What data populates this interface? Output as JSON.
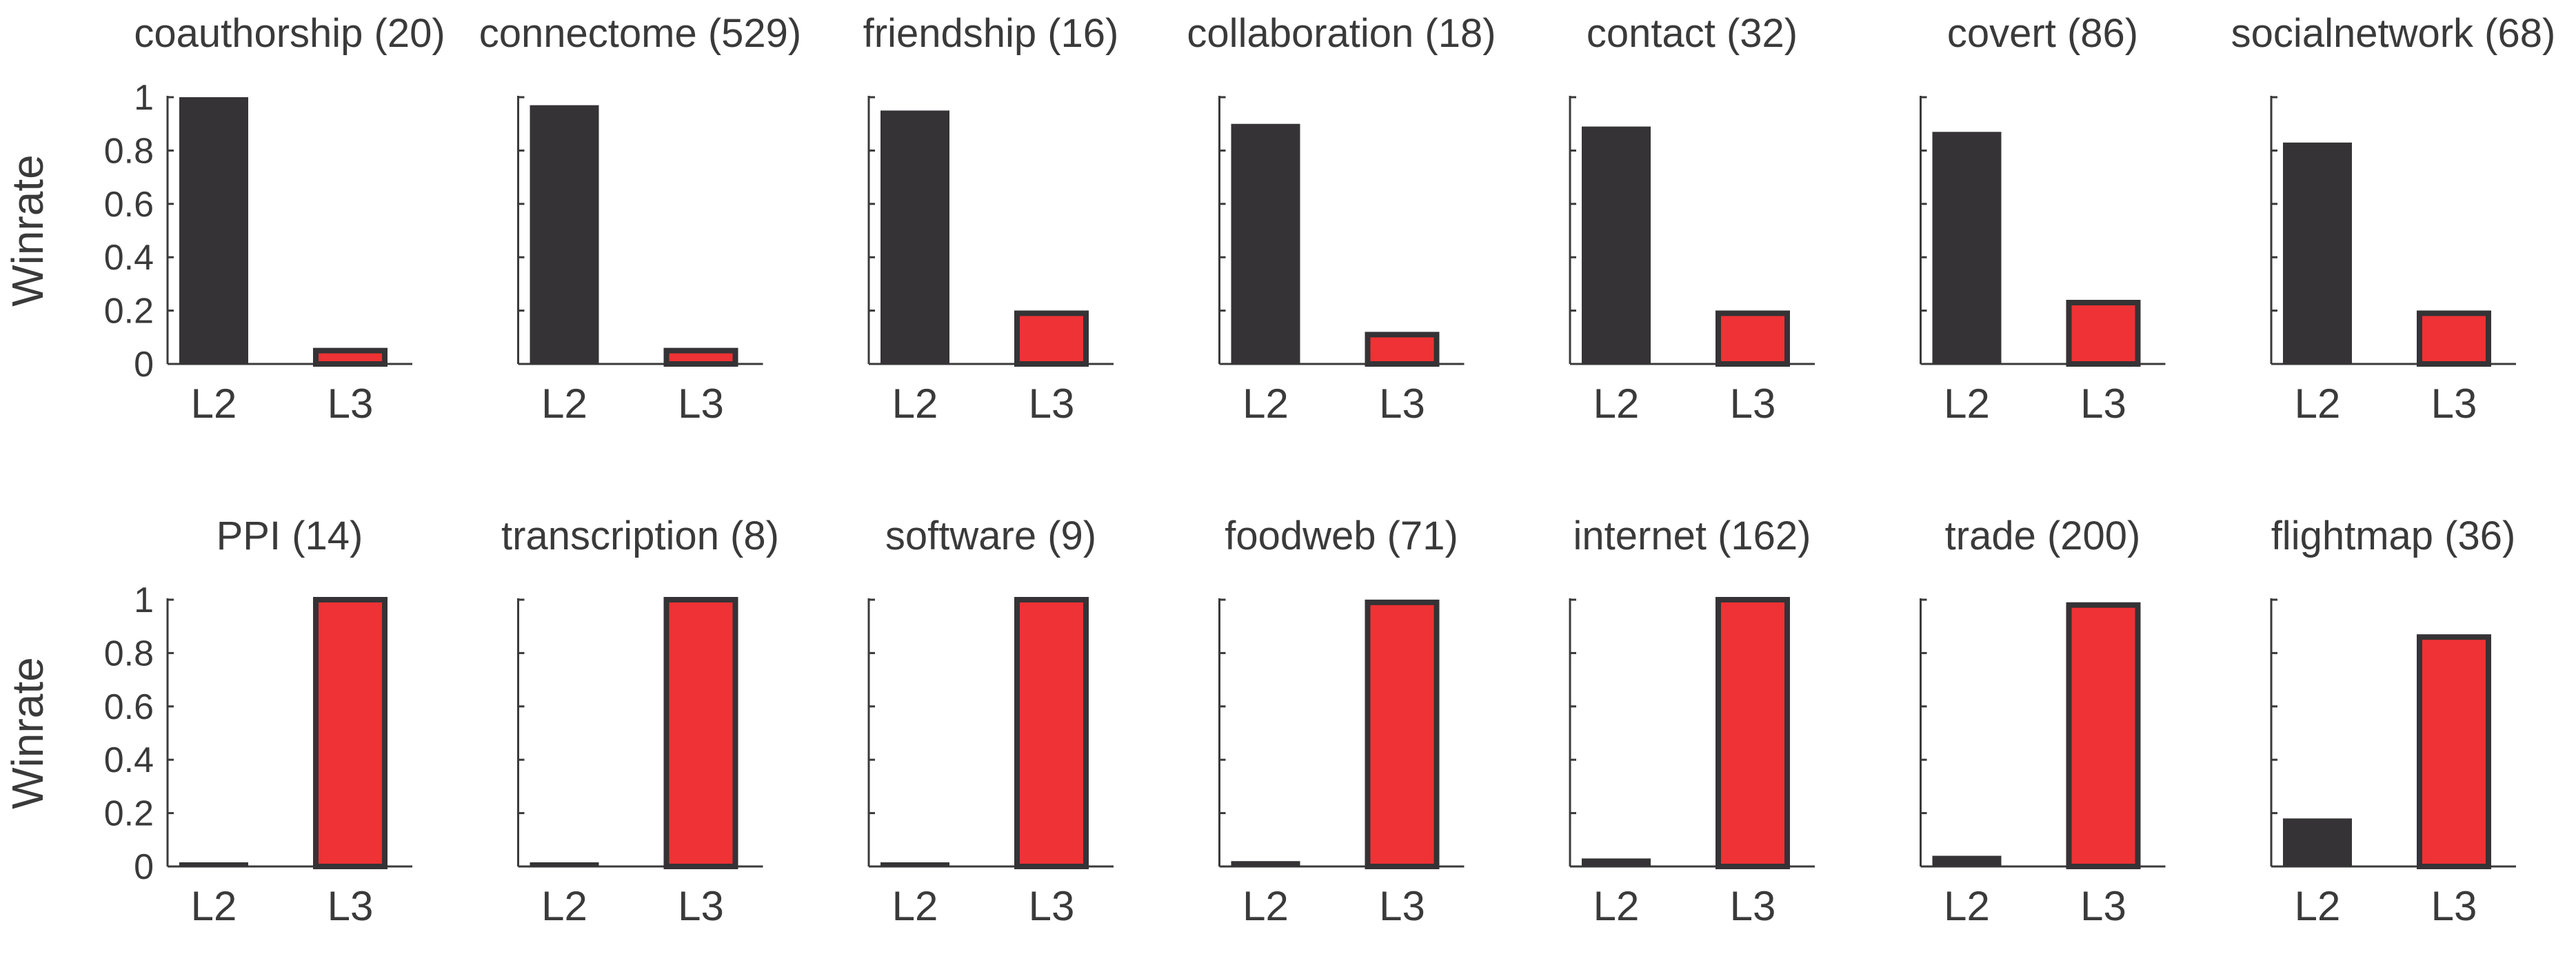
{
  "chart_data": {
    "type": "bar",
    "ylabel": "Winrate",
    "ylim": [
      0,
      1
    ],
    "yticks": [
      0,
      0.2,
      0.4,
      0.6,
      0.8,
      1
    ],
    "ytick_labels": [
      "0",
      "0.2",
      "0.4",
      "0.6",
      "0.8",
      "1"
    ],
    "categories": [
      "L2",
      "L3"
    ],
    "colors": {
      "L2": "#353335",
      "L3": "#ee3235",
      "edge": "#353335"
    },
    "panels": [
      {
        "title": "coauthorship (20)",
        "values": [
          1.0,
          0.05
        ]
      },
      {
        "title": "connectome (529)",
        "values": [
          0.97,
          0.05
        ]
      },
      {
        "title": "friendship (16)",
        "values": [
          0.95,
          0.19
        ]
      },
      {
        "title": "collaboration (18)",
        "values": [
          0.9,
          0.11
        ]
      },
      {
        "title": "contact (32)",
        "values": [
          0.89,
          0.19
        ]
      },
      {
        "title": "covert (86)",
        "values": [
          0.87,
          0.23
        ]
      },
      {
        "title": "socialnetwork (68)",
        "values": [
          0.83,
          0.19
        ]
      },
      {
        "title": "PPI (14)",
        "values": [
          0.01,
          1.0
        ]
      },
      {
        "title": "transcription (8)",
        "values": [
          0.0,
          1.0
        ]
      },
      {
        "title": "software (9)",
        "values": [
          0.0,
          1.0
        ]
      },
      {
        "title": "foodweb (71)",
        "values": [
          0.02,
          0.99
        ]
      },
      {
        "title": "internet (162)",
        "values": [
          0.03,
          1.0
        ]
      },
      {
        "title": "trade (200)",
        "values": [
          0.04,
          0.98
        ]
      },
      {
        "title": "flightmap (36)",
        "values": [
          0.18,
          0.86
        ]
      }
    ]
  }
}
